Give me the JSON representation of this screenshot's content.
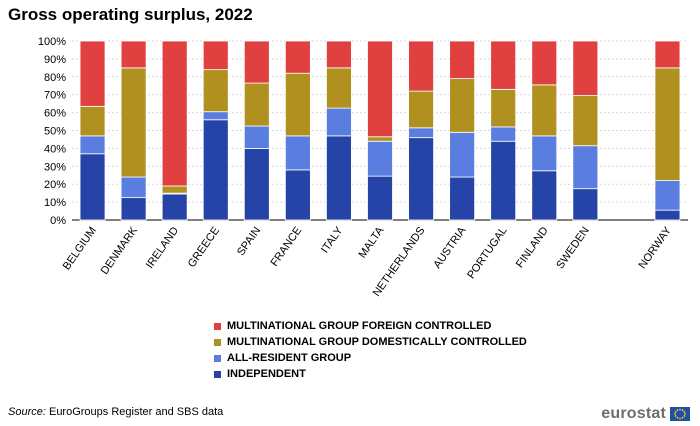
{
  "chart_data": {
    "type": "bar",
    "stacked": true,
    "title": "Gross operating surplus, 2022",
    "xlabel": "",
    "ylabel": "",
    "ylim": [
      0,
      100
    ],
    "yticks": [
      "0%",
      "10%",
      "20%",
      "30%",
      "40%",
      "50%",
      "60%",
      "70%",
      "80%",
      "90%",
      "100%"
    ],
    "categories": [
      "BELGIUM",
      "DENMARK",
      "IRELAND",
      "GREECE",
      "SPAIN",
      "FRANCE",
      "ITALY",
      "MALTA",
      "NETHERLANDS",
      "AUSTRIA",
      "PORTUGAL",
      "FINLAND",
      "SWEDEN",
      "",
      "NORWAY"
    ],
    "series": [
      {
        "name": "INDEPENDENT",
        "color": "#2644A7",
        "values": [
          37,
          12.5,
          14.5,
          56,
          40,
          28,
          47,
          24.5,
          46,
          24,
          44,
          27.5,
          17.5,
          null,
          5.5
        ]
      },
      {
        "name": "ALL-RESIDENT GROUP",
        "color": "#5A7EE0",
        "values": [
          10,
          11.5,
          0.5,
          4.5,
          12.5,
          19,
          15.5,
          19.5,
          5.5,
          25,
          8,
          19.5,
          24,
          null,
          16.5
        ]
      },
      {
        "name": "MULTINATIONAL GROUP DOMESTICALLY CONTROLLED",
        "color": "#B09120",
        "values": [
          16.5,
          61,
          4,
          23.5,
          24,
          35,
          22.5,
          2.5,
          20.5,
          30,
          21,
          28.5,
          28,
          null,
          63
        ]
      },
      {
        "name": "MULTINATIONAL GROUP FOREIGN CONTROLLED",
        "color": "#E04040",
        "values": [
          36.5,
          15,
          81,
          16,
          23.5,
          18,
          15,
          53.5,
          28,
          21,
          27,
          24.5,
          30.5,
          null,
          15
        ]
      }
    ],
    "legend_position": "bottom"
  },
  "legend": {
    "items": [
      {
        "label": "MULTINATIONAL GROUP FOREIGN CONTROLLED",
        "color": "#E04040"
      },
      {
        "label": "MULTINATIONAL GROUP DOMESTICALLY CONTROLLED",
        "color": "#B09120"
      },
      {
        "label": "ALL-RESIDENT GROUP",
        "color": "#5A7EE0"
      },
      {
        "label": "INDEPENDENT",
        "color": "#2644A7"
      }
    ]
  },
  "footer": {
    "source_label": "Source:",
    "source_text": " EuroGroups Register and SBS data",
    "logo_text": "eurostat",
    "flag_icon": "eu-flag-icon"
  }
}
